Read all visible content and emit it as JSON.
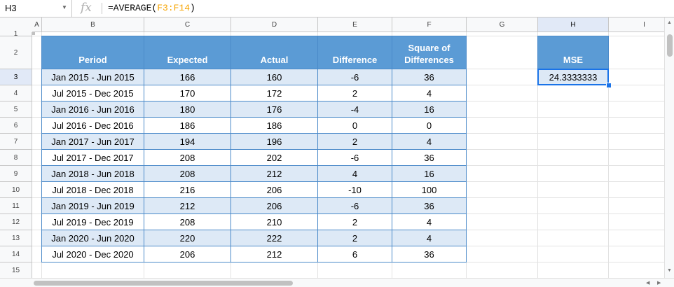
{
  "formula_bar": {
    "name_box": "H3",
    "fx_label": "fx",
    "formula_prefix": "=AVERAGE(",
    "formula_range": "F3:F14",
    "formula_suffix": ")"
  },
  "columns": [
    "A",
    "B",
    "C",
    "D",
    "E",
    "F",
    "G",
    "H",
    "I"
  ],
  "rows": [
    "1",
    "2",
    "3",
    "4",
    "5",
    "6",
    "7",
    "8",
    "9",
    "10",
    "11",
    "12",
    "13",
    "14",
    "15"
  ],
  "selected": {
    "column": "H",
    "row": "3"
  },
  "table": {
    "headers": [
      "Period",
      "Expected",
      "Actual",
      "Difference",
      "Square of Differences"
    ],
    "rows": [
      [
        "Jan 2015 - Jun 2015",
        "166",
        "160",
        "-6",
        "36"
      ],
      [
        "Jul 2015 - Dec 2015",
        "170",
        "172",
        "2",
        "4"
      ],
      [
        "Jan 2016 - Jun 2016",
        "180",
        "176",
        "-4",
        "16"
      ],
      [
        "Jul 2016 - Dec 2016",
        "186",
        "186",
        "0",
        "0"
      ],
      [
        "Jan 2017 - Jun 2017",
        "194",
        "196",
        "2",
        "4"
      ],
      [
        "Jul 2017 - Dec 2017",
        "208",
        "202",
        "-6",
        "36"
      ],
      [
        "Jan 2018 - Jun 2018",
        "208",
        "212",
        "4",
        "16"
      ],
      [
        "Jul 2018 - Dec 2018",
        "216",
        "206",
        "-10",
        "100"
      ],
      [
        "Jan 2019 - Jun 2019",
        "212",
        "206",
        "-6",
        "36"
      ],
      [
        "Jul 2019 - Dec 2019",
        "208",
        "210",
        "2",
        "4"
      ],
      [
        "Jan 2020 - Jun 2020",
        "220",
        "222",
        "2",
        "4"
      ],
      [
        "Jul 2020 - Dec 2020",
        "206",
        "212",
        "6",
        "36"
      ]
    ]
  },
  "mse": {
    "header": "MSE",
    "value": "24.3333333"
  },
  "colors": {
    "header_fill": "#5b9bd5",
    "band_fill": "#dde9f6",
    "selection": "#1a73e8",
    "formula_range": "#f6a400"
  }
}
